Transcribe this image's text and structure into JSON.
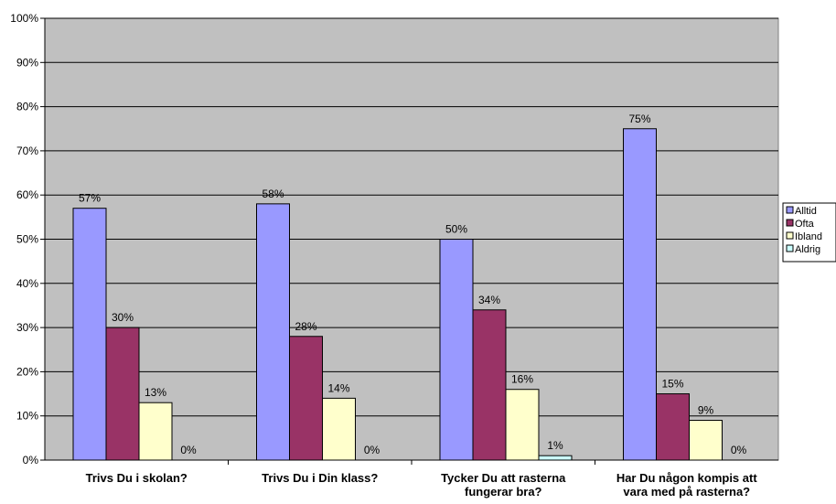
{
  "chart_data": {
    "type": "bar",
    "categories": [
      [
        "Trivs Du i skolan?"
      ],
      [
        "Trivs Du i Din klass?"
      ],
      [
        "Tycker Du att rasterna",
        "fungerar bra?"
      ],
      [
        "Har Du någon kompis att",
        "vara med på rasterna?"
      ]
    ],
    "series": [
      {
        "name": "Alltid",
        "color": "#9999ff",
        "values": [
          57,
          58,
          50,
          75
        ],
        "labels": [
          "57%",
          "58%",
          "50%",
          "75%"
        ]
      },
      {
        "name": "Ofta",
        "color": "#993366",
        "values": [
          30,
          28,
          34,
          15
        ],
        "labels": [
          "30%",
          "28%",
          "34%",
          "15%"
        ]
      },
      {
        "name": "Ibland",
        "color": "#ffffcc",
        "values": [
          13,
          14,
          16,
          9
        ],
        "labels": [
          "13%",
          "14%",
          "16%",
          "9%"
        ]
      },
      {
        "name": "Aldrig",
        "color": "#ccffff",
        "values": [
          0,
          0,
          1,
          0
        ],
        "labels": [
          "0%",
          "0%",
          "1%",
          "0%"
        ]
      }
    ],
    "ylim": [
      0,
      100
    ],
    "yticks": [
      "0%",
      "10%",
      "20%",
      "30%",
      "40%",
      "50%",
      "60%",
      "70%",
      "80%",
      "90%",
      "100%"
    ],
    "grid": true,
    "legend": "right",
    "plot_background": "#c0c0c0"
  }
}
